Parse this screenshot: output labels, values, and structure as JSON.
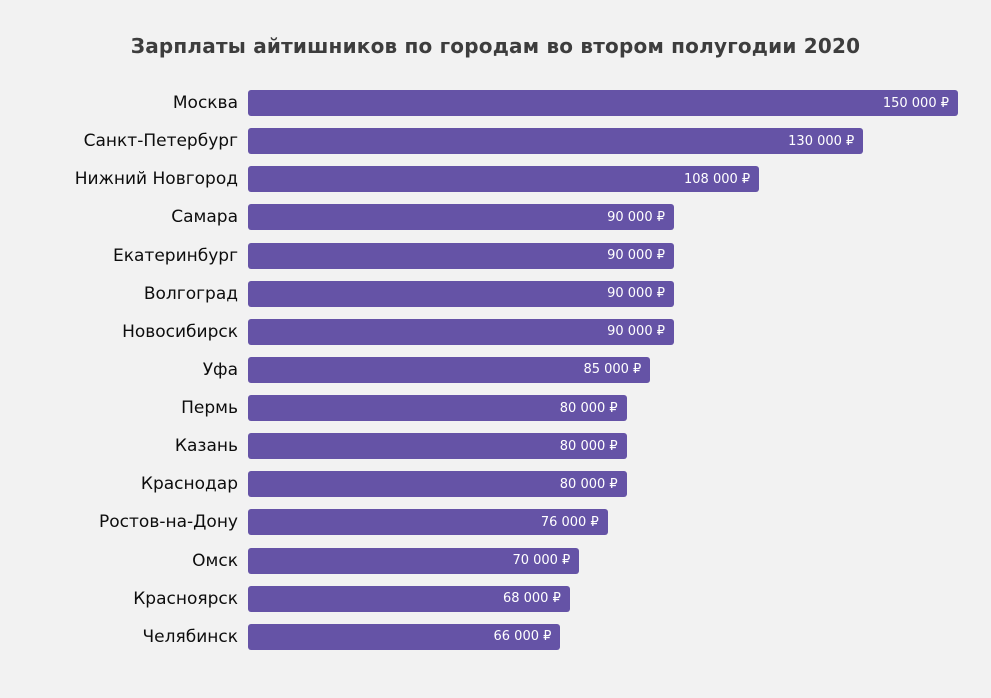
{
  "chart_data": {
    "type": "bar",
    "orientation": "horizontal",
    "title": "Зарплаты айтишников по городам во втором полугодии 2020",
    "categories": [
      "Москва",
      "Санкт-Петербург",
      "Нижний Новгород",
      "Самара",
      "Екатеринбург",
      "Волгоград",
      "Новосибирск",
      "Уфа",
      "Пермь",
      "Казань",
      "Краснодар",
      "Ростов-на-Дону",
      "Омск",
      "Красноярск",
      "Челябинск"
    ],
    "values": [
      150000,
      130000,
      108000,
      90000,
      90000,
      90000,
      90000,
      85000,
      80000,
      80000,
      80000,
      76000,
      70000,
      68000,
      66000
    ],
    "value_labels": [
      "150 000 ₽",
      "130 000 ₽",
      "108 000 ₽",
      "90 000 ₽",
      "90 000 ₽",
      "90 000 ₽",
      "90 000 ₽",
      "85 000 ₽",
      "80 000 ₽",
      "80 000 ₽",
      "80 000 ₽",
      "76 000 ₽",
      "70 000 ₽",
      "68 000 ₽",
      "66 000 ₽"
    ],
    "xlabel": "",
    "ylabel": "",
    "xlim": [
      0,
      150000
    ],
    "grid": false,
    "legend": false,
    "bar_color": "#6553a6",
    "value_label_color": "#ffffff",
    "background_color": "#f2f2f2",
    "title_color": "#3d3d3d"
  }
}
